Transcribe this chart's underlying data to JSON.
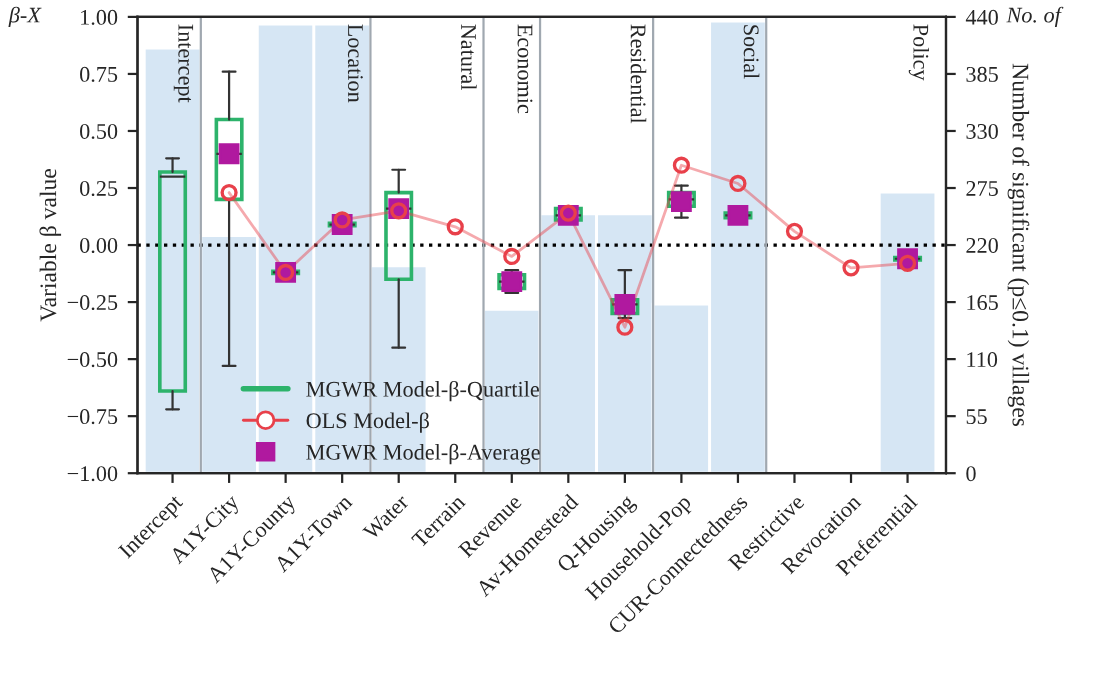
{
  "chart_data": {
    "type": "box",
    "ylabel": "Variable β value",
    "y2label": "Number of significant (p≤0.1) villages",
    "annotations": [
      "β-X",
      "No. of",
      "Intercept",
      "Location",
      "Natural",
      "Economic",
      "Residential",
      "Social",
      "Policy"
    ],
    "categories": [
      "Intercept",
      "A1Y-City",
      "A1Y-County",
      "A1Y-Town",
      "Water",
      "Terrain",
      "Revenue",
      "Av-Homestead",
      "Q-Housing",
      "Household-Pop",
      "CUR-Connectedness",
      "Restrictive",
      "Revocation",
      "Preferential"
    ],
    "series": [
      {
        "type": "bar",
        "axis": "y2",
        "color": "#d6e6f4",
        "values": [
          410,
          229,
          433,
          433,
          200,
          null,
          158,
          250,
          250,
          163,
          436,
          null,
          null,
          271
        ]
      },
      {
        "name": "MGWR Model-β-Quartile",
        "color": "#2db36b",
        "boxes": [
          {
            "low": -0.72,
            "q1": -0.64,
            "median": 0.3,
            "q3": 0.32,
            "high": 0.38
          },
          {
            "low": -0.53,
            "q1": 0.2,
            "median": 0.4,
            "q3": 0.55,
            "high": 0.76
          },
          {
            "low": -0.13,
            "q1": -0.125,
            "median": -0.12,
            "q3": -0.115,
            "high": -0.11
          },
          {
            "low": 0.07,
            "q1": 0.085,
            "median": 0.09,
            "q3": 0.095,
            "high": 0.1
          },
          {
            "low": -0.45,
            "q1": -0.15,
            "median": 0.16,
            "q3": 0.23,
            "high": 0.33
          },
          null,
          {
            "low": -0.21,
            "q1": -0.19,
            "median": -0.16,
            "q3": -0.13,
            "high": -0.11
          },
          {
            "low": 0.1,
            "q1": 0.11,
            "median": 0.13,
            "q3": 0.16,
            "high": 0.17
          },
          {
            "low": -0.32,
            "q1": -0.3,
            "median": -0.26,
            "q3": -0.24,
            "high": -0.11
          },
          {
            "low": 0.12,
            "q1": 0.17,
            "median": 0.2,
            "q3": 0.23,
            "high": 0.26
          },
          {
            "low": 0.11,
            "q1": 0.12,
            "median": 0.13,
            "q3": 0.14,
            "high": 0.15
          },
          null,
          null,
          {
            "low": -0.07,
            "q1": -0.065,
            "median": -0.06,
            "q3": -0.055,
            "high": -0.05
          }
        ]
      },
      {
        "type": "line",
        "name": "OLS Model-β",
        "color": "#e8404a",
        "marker": "circle",
        "values": [
          null,
          0.23,
          -0.12,
          0.11,
          0.15,
          0.08,
          -0.05,
          0.14,
          -0.36,
          0.35,
          0.27,
          0.06,
          -0.1,
          -0.08
        ]
      },
      {
        "type": "scatter",
        "name": "MGWR Model-β-Average",
        "color": "#b0199f",
        "marker": "square",
        "values": [
          null,
          0.4,
          -0.12,
          0.09,
          0.16,
          null,
          -0.16,
          0.13,
          -0.26,
          0.19,
          0.13,
          null,
          null,
          -0.06
        ]
      }
    ],
    "ylim": [
      -1,
      1
    ],
    "yticks": [
      {
        "value": -1,
        "label": "−1.00"
      },
      {
        "value": -0.75,
        "label": "−0.75"
      },
      {
        "value": -0.5,
        "label": "−0.50"
      },
      {
        "value": -0.25,
        "label": "−0.25"
      },
      {
        "value": 0,
        "label": "0.00"
      },
      {
        "value": 0.25,
        "label": "0.25"
      },
      {
        "value": 0.5,
        "label": "0.50"
      },
      {
        "value": 0.75,
        "label": "0.75"
      },
      {
        "value": 1,
        "label": "1.00"
      }
    ],
    "y2lim": [
      0,
      440
    ],
    "y2ticks": [
      0,
      55,
      110,
      165,
      220,
      275,
      330,
      385,
      440
    ],
    "ref_lines": [
      {
        "axis": "y",
        "value": 0,
        "color": "#000000",
        "line_style": "dotted"
      }
    ],
    "legend": "bottom left",
    "grid": false
  }
}
